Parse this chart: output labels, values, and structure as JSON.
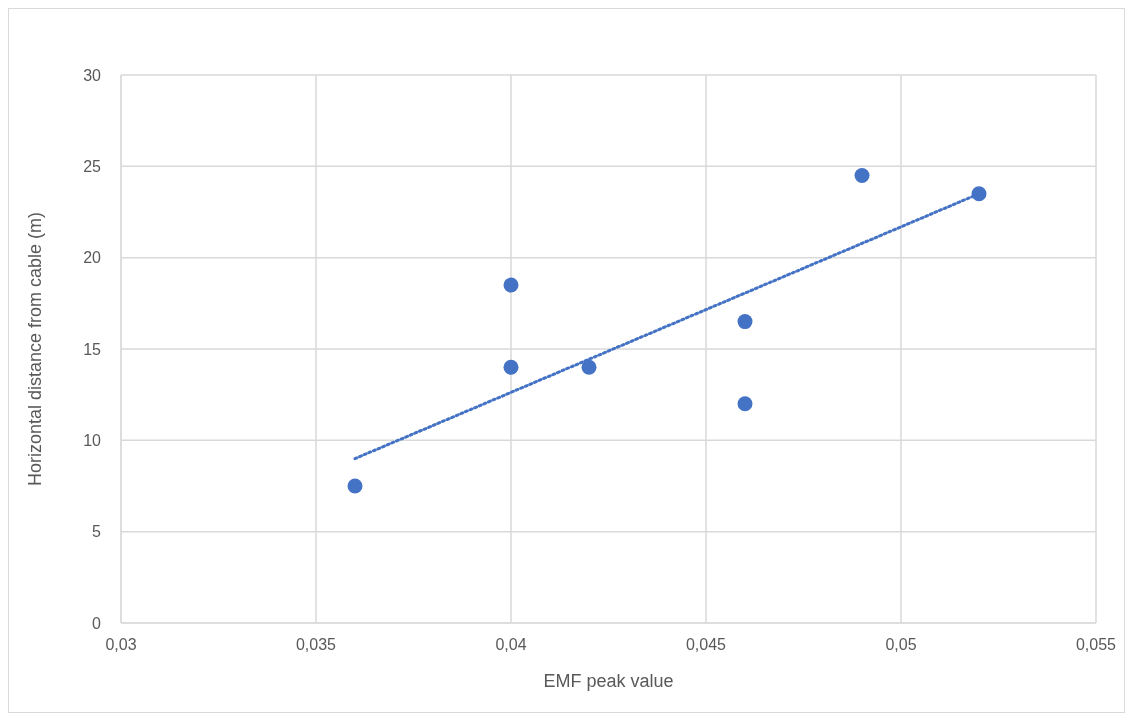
{
  "chart_data": {
    "type": "scatter",
    "xlabel": "EMF peak value",
    "ylabel": "Horizontal distance from cable (m)",
    "series": [
      {
        "color": "#4472c4",
        "marker": "circle",
        "x": [
          0.036,
          0.04,
          0.04,
          0.042,
          0.046,
          0.046,
          0.049,
          0.052
        ],
        "values": [
          7.5,
          18.5,
          14,
          14,
          16.5,
          12,
          24.5,
          23.5
        ]
      },
      {
        "type": "line",
        "color": "#4472c4",
        "line_style": "dotted",
        "marker": "none",
        "x": [
          0.036,
          0.052
        ],
        "values": [
          9,
          23.5
        ]
      }
    ],
    "xlim": [
      0.03,
      0.055
    ],
    "xticks": [
      {
        "value": 0.03,
        "label": "0,03"
      },
      {
        "value": 0.035,
        "label": "0,035"
      },
      {
        "value": 0.04,
        "label": "0,04"
      },
      {
        "value": 0.045,
        "label": "0,045"
      },
      {
        "value": 0.05,
        "label": "0,05"
      },
      {
        "value": 0.055,
        "label": "0,055"
      }
    ],
    "ylim": [
      0,
      30
    ],
    "yticks": [
      0,
      5,
      10,
      15,
      20,
      25,
      30
    ],
    "grid": true
  }
}
